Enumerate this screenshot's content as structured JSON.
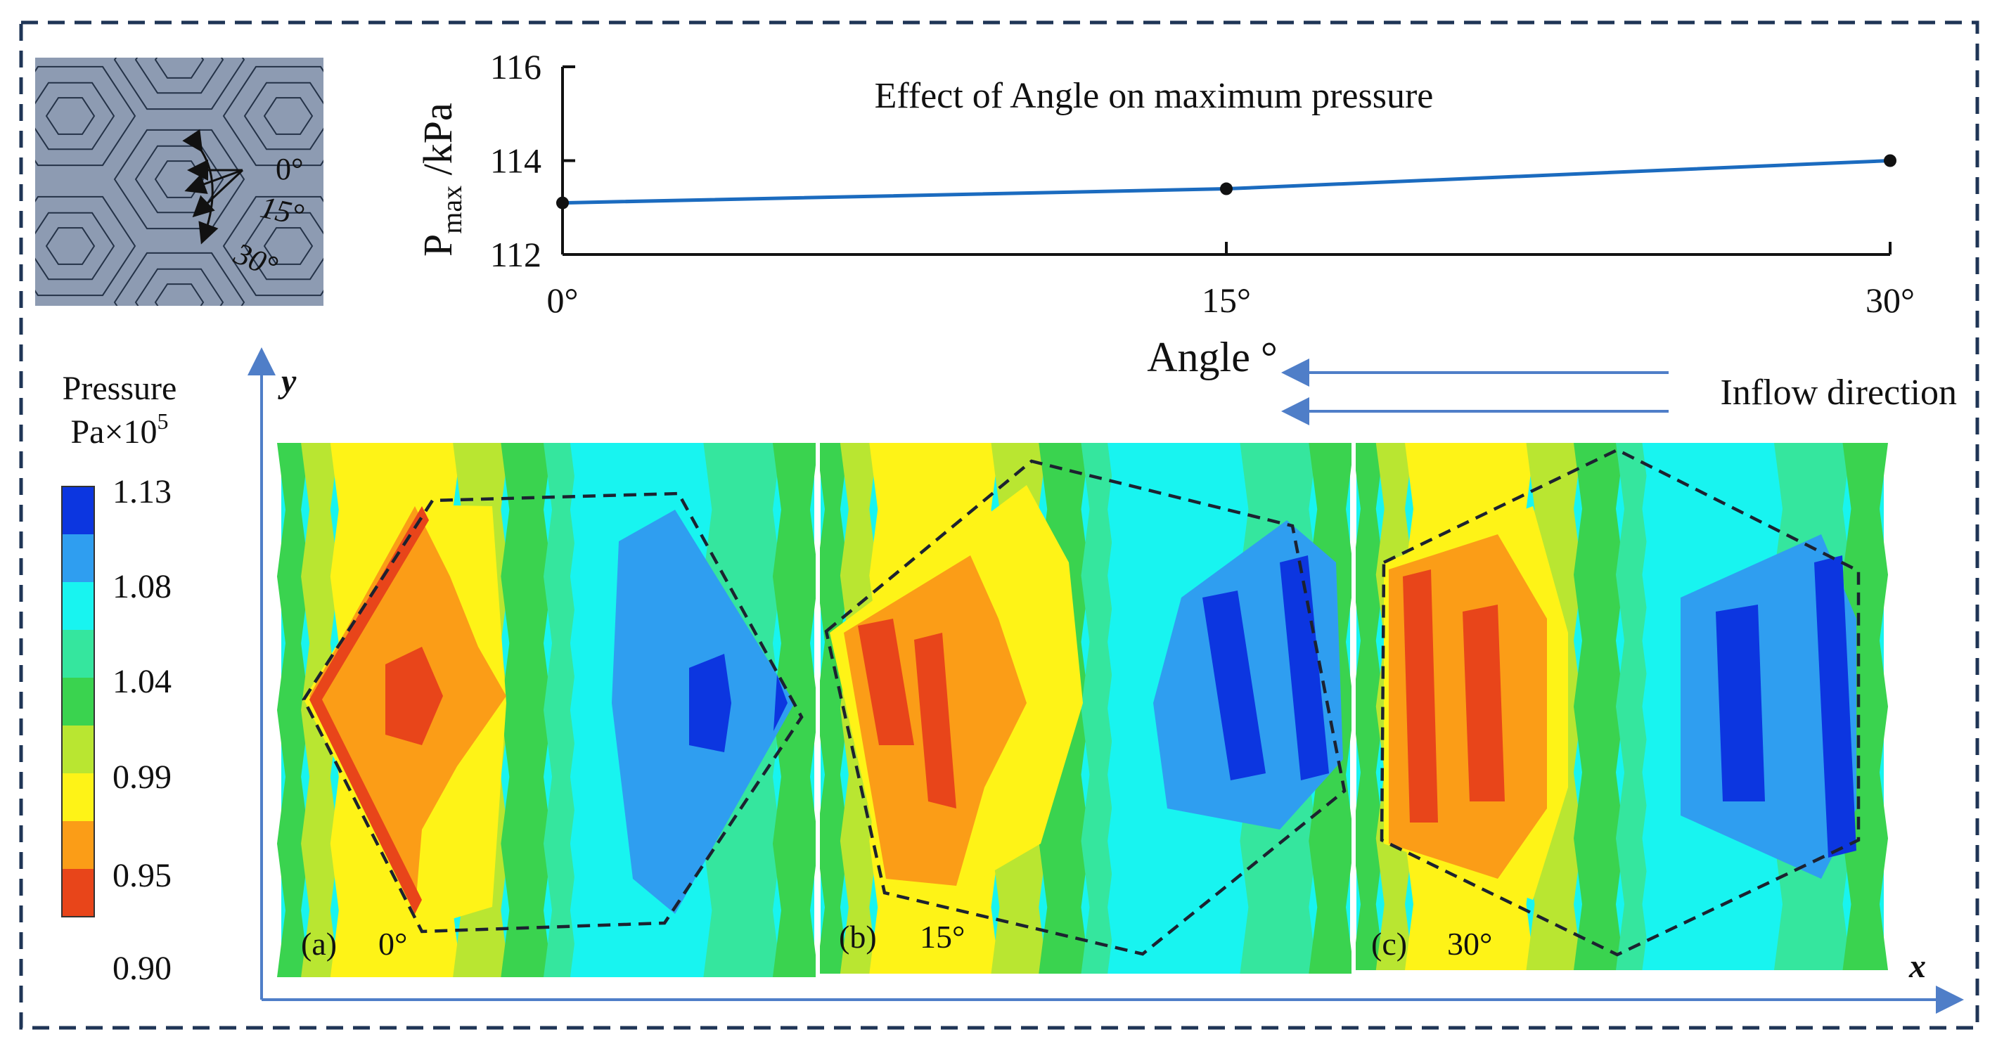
{
  "chart_data": {
    "type": "line",
    "title": "Effect of Angle on maximum pressure",
    "xlabel": "Angle °",
    "ylabel": {
      "main": "P",
      "sub": "max",
      "unit": " /kPa"
    },
    "categories": [
      "0°",
      "15°",
      "30°"
    ],
    "x": [
      0,
      15,
      30
    ],
    "series": [
      {
        "name": "Pmax",
        "values": [
          113.1,
          113.4,
          114.0
        ]
      }
    ],
    "ylim": [
      112,
      116
    ],
    "yticks": [
      "116",
      "114",
      "112"
    ]
  },
  "texture": {
    "angle_labels": [
      "0°",
      "15°",
      "30°"
    ]
  },
  "legend": {
    "title_line1": "Pressure",
    "title_line2": "Pa×10",
    "title_exp": "5",
    "ticks": [
      "1.13",
      "1.08",
      "1.04",
      "0.99",
      "0.95",
      "0.90"
    ],
    "colors": [
      "#e8451a",
      "#fb9d17",
      "#fef317",
      "#b9e631",
      "#3ad34f",
      "#35e69e",
      "#18f4f0",
      "#2f9ef0",
      "#0c36e0"
    ]
  },
  "axes": {
    "x_label": "x",
    "y_label": "y"
  },
  "inflow": {
    "label": "Inflow direction"
  },
  "panels": [
    {
      "letter": "(a)",
      "angle": "0°"
    },
    {
      "letter": "(b)",
      "angle": "15°"
    },
    {
      "letter": "(c)",
      "angle": "30°"
    }
  ],
  "colors": {
    "frame": "#1f3556",
    "line": "#1b6bbf",
    "arrow": "#4f7ec8",
    "texture_bg": "#8d9bb2"
  }
}
